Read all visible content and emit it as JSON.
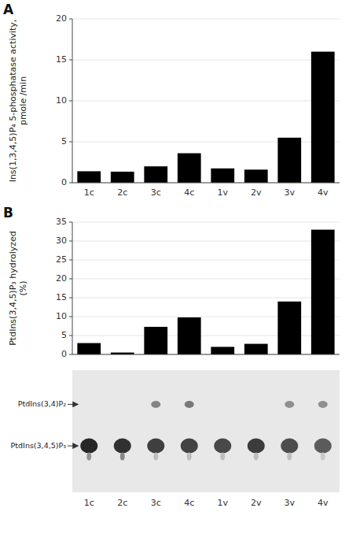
{
  "chart_data": [
    {
      "type": "bar",
      "title": "A",
      "ylabel": "Ins(1,3,4,5)P₄ 5-phosphatase activity,\npmole /min",
      "categories": [
        "1c",
        "2c",
        "3c",
        "4c",
        "1v",
        "2v",
        "3v",
        "4v"
      ],
      "values": [
        1.4,
        1.35,
        2.0,
        3.6,
        1.75,
        1.6,
        5.5,
        16.0
      ],
      "color": "#000000",
      "ylim": [
        0,
        20
      ],
      "yticks": [
        0,
        5,
        10,
        15,
        20
      ]
    },
    {
      "type": "bar",
      "title": "B",
      "ylabel": "PtdIns(3,4,5)P₃ hydrolyzed\n(%)",
      "categories": [
        "1c",
        "2c",
        "3c",
        "4c",
        "1v",
        "2v",
        "3v",
        "4v"
      ],
      "values": [
        3.0,
        0.5,
        7.3,
        9.8,
        2.0,
        2.8,
        14.0,
        33.0
      ],
      "color": "#000000",
      "ylim": [
        0,
        35
      ],
      "yticks": [
        0,
        5,
        10,
        15,
        20,
        25,
        30,
        35
      ],
      "tick_labels": "y"
    },
    {
      "type": "blot",
      "categories": [
        "1c",
        "2c",
        "3c",
        "4c",
        "1v",
        "2v",
        "3v",
        "4v"
      ],
      "color": "#e8e8e8",
      "series": [
        {
          "name": "PtdIns(3,4)P₂",
          "values": [
            0.0,
            0.0,
            0.55,
            0.6,
            0.0,
            0.0,
            0.5,
            0.5
          ]
        },
        {
          "name": "PtdIns(3,4,5)P₃",
          "values": [
            0.92,
            0.88,
            0.82,
            0.8,
            0.78,
            0.83,
            0.76,
            0.7
          ],
          "tail_values": [
            0.5,
            0.55,
            0.3,
            0.3,
            0.3,
            0.3,
            0.3,
            0.25
          ]
        }
      ]
    }
  ]
}
